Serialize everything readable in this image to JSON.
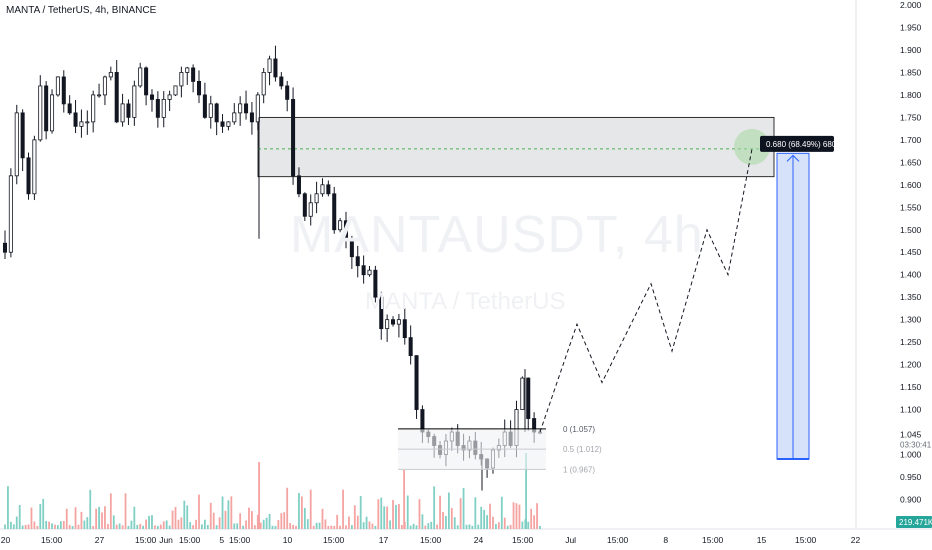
{
  "header": {
    "symbol_line": "MANTA / TetherUS, 4h, BINANCE"
  },
  "watermark": {
    "ticker": "MANTAUSDT, 4h",
    "pair": "MANTA / TetherUS"
  },
  "colors": {
    "up": "#26a69a",
    "down": "#ef5350",
    "candle": "#131722",
    "zone_fill": "#e3e4e6",
    "target_line": "#4caf50",
    "measure_fill": "#d6e2fa",
    "measure_line": "#2962ff",
    "volume_up": "#7fcfc4",
    "volume_down": "#f4a3a1",
    "badge": "#0e1320",
    "price_badge": "#131722"
  },
  "chart_data": {
    "type": "candlestick",
    "title": "",
    "xlabel": "",
    "ylabel": "",
    "ylim": [
      0.85,
      2.0
    ],
    "y_ticks": [
      "2.000",
      "1.950",
      "1.900",
      "1.850",
      "1.800",
      "1.750",
      "1.700",
      "1.650",
      "1.600",
      "1.550",
      "1.500",
      "1.450",
      "1.400",
      "1.350",
      "1.300",
      "1.250",
      "1.200",
      "1.150",
      "1.100",
      "1.045",
      "1.000",
      "0.950",
      "0.900"
    ],
    "x_ticks": [
      "20",
      "15:00",
      "27",
      "15:00",
      "Jun",
      "15:00",
      "5",
      "15:00",
      "10",
      "15:00",
      "17",
      "15:00",
      "24",
      "15:00",
      "Jul",
      "15:00",
      "8",
      "15:00",
      "15",
      "15:00",
      "22"
    ],
    "close_path": [
      1.45,
      1.62,
      1.76,
      1.66,
      1.58,
      1.7,
      1.82,
      1.72,
      1.8,
      1.84,
      1.78,
      1.76,
      1.73,
      1.74,
      1.74,
      1.8,
      1.8,
      1.84,
      1.85,
      1.74,
      1.78,
      1.75,
      1.82,
      1.86,
      1.8,
      1.79,
      1.75,
      1.79,
      1.8,
      1.82,
      1.85,
      1.86,
      1.83,
      1.8,
      1.75,
      1.78,
      1.74,
      1.73,
      1.74,
      1.76,
      1.78,
      1.76,
      1.74,
      1.8,
      1.85,
      1.88,
      1.84,
      1.82,
      1.79,
      1.62,
      1.58,
      1.53,
      1.56,
      1.58,
      1.6,
      1.58,
      1.5,
      1.52,
      1.48,
      1.44,
      1.42,
      1.4,
      1.41,
      1.35,
      1.28,
      1.3,
      1.29,
      1.3,
      1.26,
      1.22,
      1.1,
      1.05,
      1.04,
      1.02,
      1.0,
      1.03,
      1.05,
      1.02,
      1.01,
      1.03,
      1.0,
      0.99,
      0.97,
      1.01,
      1.02,
      1.05,
      1.02,
      1.1,
      1.17,
      1.08,
      1.05,
      1.05
    ],
    "resistance_zone": {
      "low": 1.618,
      "high": 1.75
    },
    "target_price": 1.68,
    "target_label": "0.680 (68.49%) 680",
    "projection_path": [
      1.05,
      1.29,
      1.16,
      1.38,
      1.23,
      1.5,
      1.4,
      1.68
    ],
    "measure": {
      "from": 0.99,
      "to": 1.67
    },
    "fib_levels": [
      {
        "ratio": "0",
        "label": "0 (1.057)",
        "price": 1.057
      },
      {
        "ratio": "0.5",
        "label": "0.5 (1.012)",
        "price": 1.012
      },
      {
        "ratio": "1",
        "label": "1 (0.967)",
        "price": 0.967
      }
    ],
    "last_price": "1.045",
    "countdown": "03:30:41",
    "volume_label": "219.471K"
  }
}
